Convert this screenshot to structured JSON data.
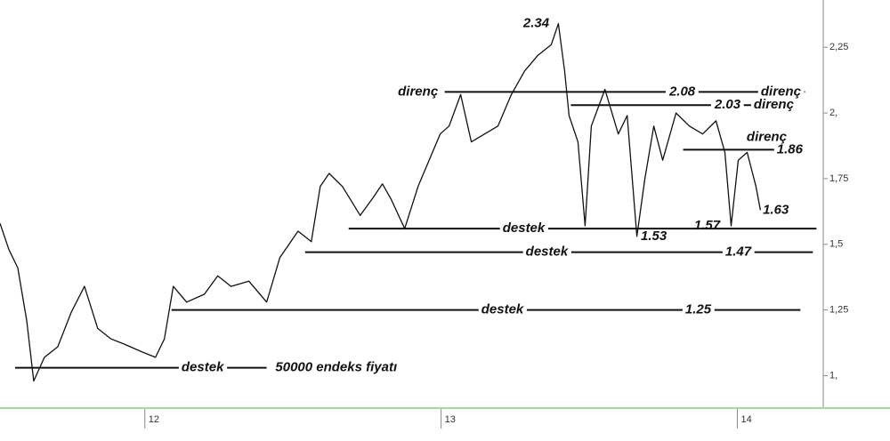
{
  "chart_data": {
    "type": "line",
    "x": [
      11.511,
      11.541,
      11.571,
      11.601,
      11.625,
      11.661,
      11.706,
      11.751,
      11.796,
      11.841,
      11.886,
      11.931,
      11.991,
      12.036,
      12.066,
      12.096,
      12.141,
      12.201,
      12.246,
      12.291,
      12.351,
      12.411,
      12.456,
      12.517,
      12.562,
      12.592,
      12.622,
      12.667,
      12.727,
      12.772,
      12.802,
      12.832,
      12.877,
      12.922,
      12.952,
      12.997,
      13.027,
      13.066,
      13.102,
      13.147,
      13.192,
      13.237,
      13.282,
      13.327,
      13.372,
      13.396,
      13.417,
      13.432,
      13.462,
      13.486,
      13.507,
      13.553,
      13.598,
      13.628,
      13.661,
      13.688,
      13.718,
      13.748,
      13.793,
      13.838,
      13.883,
      13.928,
      13.958,
      13.979,
      14.003,
      14.033,
      14.063,
      14.078
    ],
    "values": [
      1.58,
      1.48,
      1.41,
      1.21,
      0.98,
      1.07,
      1.11,
      1.24,
      1.34,
      1.18,
      1.14,
      1.12,
      1.09,
      1.07,
      1.14,
      1.34,
      1.28,
      1.31,
      1.38,
      1.34,
      1.36,
      1.28,
      1.45,
      1.55,
      1.51,
      1.72,
      1.77,
      1.72,
      1.61,
      1.68,
      1.73,
      1.67,
      1.56,
      1.72,
      1.8,
      1.92,
      1.95,
      2.07,
      1.89,
      1.92,
      1.95,
      2.07,
      2.16,
      2.22,
      2.26,
      2.34,
      2.16,
      1.99,
      1.89,
      1.57,
      1.95,
      2.09,
      1.92,
      1.99,
      1.53,
      1.75,
      1.95,
      1.82,
      2.0,
      1.95,
      1.92,
      1.97,
      1.85,
      1.57,
      1.82,
      1.85,
      1.72,
      1.63
    ],
    "color": "#111111",
    "xlim": [
      11.511,
      14.29
    ],
    "ylim": [
      0.88,
      2.43
    ],
    "xticks": [
      12,
      13,
      14
    ],
    "yticks": [
      {
        "value": 1,
        "label": "1,"
      },
      {
        "value": 1.25,
        "label": "1,25"
      },
      {
        "value": 1.5,
        "label": "1,5"
      },
      {
        "value": 1.75,
        "label": "1,75"
      },
      {
        "value": 2,
        "label": "2,"
      },
      {
        "value": 2.25,
        "label": "2,25"
      }
    ],
    "levels": [
      {
        "value": 2.08,
        "from": 13.012,
        "to": 14.228,
        "labels": [
          {
            "text": "direnç",
            "x": 12.922
          },
          {
            "value": 2.08,
            "x": 13.814
          },
          {
            "text": "direnç",
            "x": 14.147
          }
        ]
      },
      {
        "value": 2.03,
        "from": 13.438,
        "to": 14.057,
        "labels": [
          {
            "value": 2.03,
            "x": 13.967
          },
          {
            "text": "direnç",
            "x": 14.123
          }
        ]
      },
      {
        "value": 1.86,
        "from": 13.817,
        "to": 14.228,
        "labels": [
          {
            "text": "direnç",
            "x": 14.099,
            "above": true
          },
          {
            "value": 1.86,
            "x": 14.177
          }
        ]
      },
      {
        "value": 1.56,
        "from": 12.688,
        "to": 14.267,
        "labels": [
          {
            "text": "destek",
            "x": 13.279
          }
        ]
      },
      {
        "value": 1.47,
        "from": 12.541,
        "to": 14.255,
        "labels": [
          {
            "text": "destek",
            "x": 13.357
          },
          {
            "value": 1.47,
            "x": 14.003
          }
        ]
      },
      {
        "value": 1.25,
        "from": 12.09,
        "to": 14.213,
        "labels": [
          {
            "text": "destek",
            "x": 13.207
          },
          {
            "value": 1.25,
            "x": 13.868
          }
        ]
      },
      {
        "value": 1.03,
        "from": 11.562,
        "to": 12.411,
        "labels": [
          {
            "text": "destek",
            "x": 12.195
          },
          {
            "text": "50000 endeks fiyatı",
            "x": 12.646
          }
        ]
      }
    ],
    "annotations": [
      {
        "value": 2.34,
        "x": 13.321
      },
      {
        "value": 1.53,
        "x": 13.718
      },
      {
        "value": 1.57,
        "x": 13.898
      },
      {
        "value": 1.63,
        "x": 14.13
      }
    ]
  }
}
